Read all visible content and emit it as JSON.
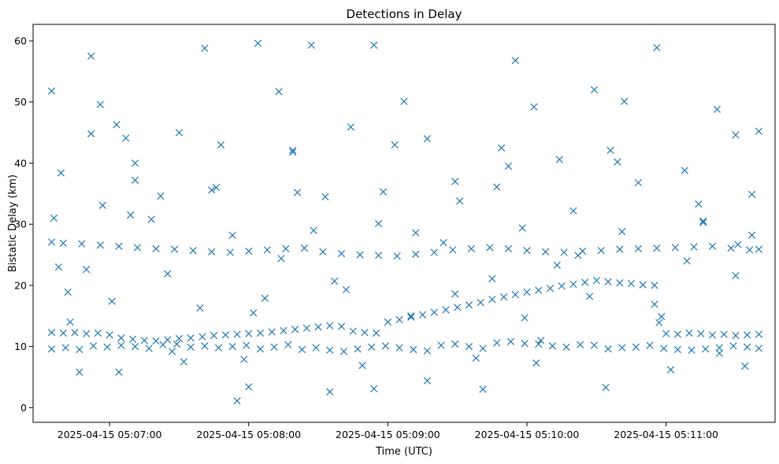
{
  "chart_data": {
    "type": "scatter",
    "title": "Detections in Delay",
    "xlabel": "Time (UTC)",
    "ylabel": "Bistatic Delay (km)",
    "x_ticks": [
      "2025-04-15 05:07:00",
      "2025-04-15 05:08:00",
      "2025-04-15 05:09:00",
      "2025-04-15 05:10:00",
      "2025-04-15 05:11:00"
    ],
    "y_ticks": [
      0,
      10,
      20,
      30,
      40,
      50,
      60
    ],
    "xlim": [
      "2025-04-15 05:06:27",
      "2025-04-15 05:11:47"
    ],
    "ylim": [
      -2.4,
      62.7
    ],
    "marker": "x",
    "marker_color": "#1f77b4",
    "grid": false,
    "legend": "none",
    "series": [
      {
        "x": [
          "2025-04-15 05:06:35",
          "2025-04-15 05:06:39",
          "2025-04-15 05:06:42",
          "2025-04-15 05:06:47",
          "2025-04-15 05:06:52",
          "2025-04-15 05:06:56",
          "2025-04-15 05:07:03",
          "2025-04-15 05:07:07",
          "2025-04-15 05:07:11",
          "2025-04-15 05:07:22",
          "2025-04-15 05:07:30",
          "2025-04-15 05:07:41",
          "2025-04-15 05:07:48",
          "2025-04-15 05:07:55",
          "2025-04-15 05:08:04",
          "2025-04-15 05:08:13",
          "2025-04-15 05:08:19",
          "2025-04-15 05:08:27",
          "2025-04-15 05:08:33",
          "2025-04-15 05:08:44",
          "2025-04-15 05:08:54",
          "2025-04-15 05:09:07",
          "2025-04-15 05:09:17",
          "2025-04-15 05:09:29",
          "2025-04-15 05:09:41",
          "2025-04-15 05:09:49",
          "2025-04-15 05:09:55",
          "2025-04-15 05:10:03",
          "2025-04-15 05:10:14",
          "2025-04-15 05:10:29",
          "2025-04-15 05:10:36",
          "2025-04-15 05:10:42",
          "2025-04-15 05:10:56",
          "2025-04-15 05:11:08",
          "2025-04-15 05:11:16",
          "2025-04-15 05:11:22",
          "2025-04-15 05:11:30",
          "2025-04-15 05:11:34",
          "2025-04-15 05:11:37",
          "2025-04-15 05:11:40"
        ],
        "y": [
          51.8,
          38.4,
          18.9,
          5.8,
          57.5,
          49.6,
          46.3,
          44.1,
          37.2,
          34.6,
          45.0,
          58.8,
          43.0,
          1.1,
          59.6,
          51.7,
          41.8,
          59.3,
          34.5,
          45.9,
          59.3,
          50.1,
          44.0,
          37.0,
          3.0,
          42.5,
          56.8,
          49.2,
          40.6,
          52.0,
          42.1,
          50.1,
          58.9,
          38.8,
          30.3,
          48.8,
          44.6,
          6.8,
          28.2,
          45.2
        ]
      },
      {
        "x": [
          "2025-04-15 05:06:35",
          "2025-04-15 05:06:40",
          "2025-04-15 05:06:48",
          "2025-04-15 05:06:56",
          "2025-04-15 05:07:04",
          "2025-04-15 05:07:12",
          "2025-04-15 05:07:20",
          "2025-04-15 05:07:28",
          "2025-04-15 05:07:36",
          "2025-04-15 05:07:44",
          "2025-04-15 05:07:52",
          "2025-04-15 05:08:00",
          "2025-04-15 05:08:08",
          "2025-04-15 05:08:16",
          "2025-04-15 05:08:24",
          "2025-04-15 05:08:32",
          "2025-04-15 05:08:40",
          "2025-04-15 05:08:48",
          "2025-04-15 05:08:56",
          "2025-04-15 05:09:04",
          "2025-04-15 05:09:12",
          "2025-04-15 05:09:20",
          "2025-04-15 05:09:28",
          "2025-04-15 05:09:36",
          "2025-04-15 05:09:44",
          "2025-04-15 05:09:52",
          "2025-04-15 05:10:00",
          "2025-04-15 05:10:08",
          "2025-04-15 05:10:16",
          "2025-04-15 05:10:24",
          "2025-04-15 05:10:32",
          "2025-04-15 05:10:40",
          "2025-04-15 05:10:48",
          "2025-04-15 05:10:56",
          "2025-04-15 05:11:04",
          "2025-04-15 05:11:12",
          "2025-04-15 05:11:20",
          "2025-04-15 05:11:28",
          "2025-04-15 05:11:36",
          "2025-04-15 05:11:40"
        ],
        "y": [
          27.1,
          26.9,
          26.8,
          26.6,
          26.4,
          26.2,
          26.0,
          25.9,
          25.7,
          25.5,
          25.4,
          25.6,
          25.8,
          26.0,
          26.1,
          25.5,
          25.2,
          25.0,
          24.9,
          24.8,
          25.1,
          25.4,
          25.8,
          26.0,
          26.2,
          26.0,
          25.7,
          25.5,
          25.4,
          25.6,
          25.7,
          25.9,
          26.0,
          26.1,
          26.2,
          26.3,
          26.4,
          26.1,
          25.8,
          25.9
        ]
      },
      {
        "x": [
          "2025-04-15 05:06:35",
          "2025-04-15 05:06:40",
          "2025-04-15 05:06:45",
          "2025-04-15 05:06:50",
          "2025-04-15 05:06:55",
          "2025-04-15 05:07:00",
          "2025-04-15 05:07:05",
          "2025-04-15 05:07:10",
          "2025-04-15 05:07:15",
          "2025-04-15 05:07:20",
          "2025-04-15 05:07:25",
          "2025-04-15 05:07:30",
          "2025-04-15 05:07:35",
          "2025-04-15 05:07:40",
          "2025-04-15 05:07:45",
          "2025-04-15 05:07:50",
          "2025-04-15 05:07:55",
          "2025-04-15 05:08:00",
          "2025-04-15 05:08:05",
          "2025-04-15 05:08:10",
          "2025-04-15 05:08:15",
          "2025-04-15 05:08:20",
          "2025-04-15 05:08:25",
          "2025-04-15 05:08:30",
          "2025-04-15 05:08:35",
          "2025-04-15 05:08:40",
          "2025-04-15 05:08:45",
          "2025-04-15 05:08:50",
          "2025-04-15 05:08:55",
          "2025-04-15 05:09:00",
          "2025-04-15 05:09:05",
          "2025-04-15 05:09:10",
          "2025-04-15 05:09:15",
          "2025-04-15 05:09:20",
          "2025-04-15 05:09:25",
          "2025-04-15 05:09:30",
          "2025-04-15 05:09:35",
          "2025-04-15 05:09:40",
          "2025-04-15 05:09:45",
          "2025-04-15 05:09:50",
          "2025-04-15 05:09:55",
          "2025-04-15 05:10:00",
          "2025-04-15 05:10:05",
          "2025-04-15 05:10:10",
          "2025-04-15 05:10:15",
          "2025-04-15 05:10:20",
          "2025-04-15 05:10:25",
          "2025-04-15 05:10:30",
          "2025-04-15 05:10:35",
          "2025-04-15 05:10:40",
          "2025-04-15 05:10:45",
          "2025-04-15 05:10:50",
          "2025-04-15 05:10:55",
          "2025-04-15 05:11:00",
          "2025-04-15 05:11:05",
          "2025-04-15 05:11:10",
          "2025-04-15 05:11:15",
          "2025-04-15 05:11:20",
          "2025-04-15 05:11:25",
          "2025-04-15 05:11:30",
          "2025-04-15 05:11:35",
          "2025-04-15 05:11:40"
        ],
        "y": [
          12.3,
          12.2,
          12.3,
          12.1,
          12.2,
          11.9,
          11.4,
          11.2,
          11.0,
          10.9,
          11.1,
          11.3,
          11.4,
          11.6,
          11.8,
          11.9,
          12.0,
          12.1,
          12.2,
          12.4,
          12.6,
          12.8,
          13.0,
          13.2,
          13.4,
          13.3,
          12.5,
          12.3,
          12.2,
          14.0,
          14.4,
          14.8,
          15.2,
          15.6,
          16.0,
          16.4,
          16.8,
          17.2,
          17.7,
          18.1,
          18.5,
          18.9,
          19.2,
          19.5,
          19.9,
          20.2,
          20.5,
          20.8,
          20.6,
          20.4,
          20.3,
          20.1,
          20.0,
          12.1,
          12.0,
          12.2,
          12.1,
          11.9,
          12.0,
          11.8,
          11.9,
          12.0
        ]
      },
      {
        "x": [
          "2025-04-15 05:06:35",
          "2025-04-15 05:06:41",
          "2025-04-15 05:06:47",
          "2025-04-15 05:06:53",
          "2025-04-15 05:06:59",
          "2025-04-15 05:07:05",
          "2025-04-15 05:07:11",
          "2025-04-15 05:07:17",
          "2025-04-15 05:07:23",
          "2025-04-15 05:07:29",
          "2025-04-15 05:07:35",
          "2025-04-15 05:07:41",
          "2025-04-15 05:07:47",
          "2025-04-15 05:07:53",
          "2025-04-15 05:07:59",
          "2025-04-15 05:08:05",
          "2025-04-15 05:08:11",
          "2025-04-15 05:08:17",
          "2025-04-15 05:08:23",
          "2025-04-15 05:08:29",
          "2025-04-15 05:08:35",
          "2025-04-15 05:08:41",
          "2025-04-15 05:08:47",
          "2025-04-15 05:08:53",
          "2025-04-15 05:08:59",
          "2025-04-15 05:09:05",
          "2025-04-15 05:09:11",
          "2025-04-15 05:09:17",
          "2025-04-15 05:09:23",
          "2025-04-15 05:09:29",
          "2025-04-15 05:09:35",
          "2025-04-15 05:09:41",
          "2025-04-15 05:09:47",
          "2025-04-15 05:09:53",
          "2025-04-15 05:09:59",
          "2025-04-15 05:10:05",
          "2025-04-15 05:10:11",
          "2025-04-15 05:10:17",
          "2025-04-15 05:10:23",
          "2025-04-15 05:10:29",
          "2025-04-15 05:10:35",
          "2025-04-15 05:10:41",
          "2025-04-15 05:10:47",
          "2025-04-15 05:10:53",
          "2025-04-15 05:10:59",
          "2025-04-15 05:11:05",
          "2025-04-15 05:11:11",
          "2025-04-15 05:11:17",
          "2025-04-15 05:11:23",
          "2025-04-15 05:11:29",
          "2025-04-15 05:11:35",
          "2025-04-15 05:11:40"
        ],
        "y": [
          9.6,
          9.8,
          9.5,
          10.1,
          9.9,
          10.2,
          10.0,
          9.7,
          10.3,
          10.4,
          9.9,
          10.1,
          9.8,
          10.0,
          10.2,
          9.6,
          9.9,
          10.3,
          9.5,
          9.8,
          9.4,
          9.2,
          9.6,
          9.9,
          10.1,
          9.8,
          9.5,
          9.3,
          10.2,
          10.4,
          10.0,
          9.7,
          10.6,
          10.8,
          10.5,
          10.4,
          10.1,
          9.9,
          10.3,
          10.2,
          9.6,
          9.8,
          9.9,
          10.2,
          9.7,
          9.5,
          9.4,
          9.6,
          9.8,
          10.1,
          9.9,
          9.7
        ]
      },
      {
        "x": [
          "2025-04-15 05:06:36",
          "2025-04-15 05:06:43",
          "2025-04-15 05:06:50",
          "2025-04-15 05:06:57",
          "2025-04-15 05:07:04",
          "2025-04-15 05:07:11",
          "2025-04-15 05:07:18",
          "2025-04-15 05:07:25",
          "2025-04-15 05:07:32",
          "2025-04-15 05:07:39",
          "2025-04-15 05:07:46",
          "2025-04-15 05:07:53",
          "2025-04-15 05:08:00",
          "2025-04-15 05:08:07",
          "2025-04-15 05:08:14",
          "2025-04-15 05:08:21",
          "2025-04-15 05:08:28",
          "2025-04-15 05:08:35",
          "2025-04-15 05:08:42",
          "2025-04-15 05:08:49",
          "2025-04-15 05:08:56",
          "2025-04-15 05:09:03",
          "2025-04-15 05:09:10",
          "2025-04-15 05:09:17",
          "2025-04-15 05:09:24",
          "2025-04-15 05:09:31",
          "2025-04-15 05:09:38",
          "2025-04-15 05:09:45",
          "2025-04-15 05:09:52",
          "2025-04-15 05:09:59",
          "2025-04-15 05:10:06",
          "2025-04-15 05:10:13",
          "2025-04-15 05:10:20",
          "2025-04-15 05:10:27",
          "2025-04-15 05:10:34",
          "2025-04-15 05:10:41",
          "2025-04-15 05:10:48",
          "2025-04-15 05:10:55",
          "2025-04-15 05:11:02",
          "2025-04-15 05:11:09",
          "2025-04-15 05:11:16",
          "2025-04-15 05:11:23",
          "2025-04-15 05:11:30",
          "2025-04-15 05:11:37",
          "2025-04-15 05:06:38",
          "2025-04-15 05:06:52",
          "2025-04-15 05:07:09",
          "2025-04-15 05:07:27",
          "2025-04-15 05:07:44",
          "2025-04-15 05:08:02",
          "2025-04-15 05:08:19",
          "2025-04-15 05:08:37",
          "2025-04-15 05:08:54",
          "2025-04-15 05:09:12",
          "2025-04-15 05:09:29",
          "2025-04-15 05:09:47",
          "2025-04-15 05:10:04",
          "2025-04-15 05:10:22",
          "2025-04-15 05:10:39",
          "2025-04-15 05:10:57",
          "2025-04-15 05:11:14",
          "2025-04-15 05:11:31",
          "2025-04-15 05:07:01",
          "2025-04-15 05:07:58",
          "2025-04-15 05:08:58",
          "2025-04-15 05:09:58",
          "2025-04-15 05:10:58"
        ],
        "y": [
          31.0,
          14.0,
          22.6,
          33.1,
          5.8,
          40.0,
          30.8,
          21.9,
          7.5,
          16.3,
          36.0,
          28.2,
          3.4,
          17.9,
          24.4,
          35.2,
          29.0,
          2.6,
          19.3,
          6.9,
          30.1,
          43.0,
          15.0,
          4.4,
          27.0,
          33.8,
          8.1,
          21.1,
          39.5,
          14.7,
          11.0,
          23.3,
          32.2,
          18.2,
          3.3,
          28.8,
          36.8,
          16.9,
          6.2,
          24.0,
          30.5,
          8.9,
          21.6,
          34.9,
          23.0,
          44.8,
          31.5,
          9.2,
          35.6,
          15.5,
          42.1,
          20.7,
          3.1,
          28.6,
          18.6,
          36.1,
          7.3,
          24.9,
          40.2,
          13.9,
          33.3,
          26.7,
          17.4,
          7.9,
          35.3,
          29.4,
          14.9
        ]
      }
    ]
  }
}
